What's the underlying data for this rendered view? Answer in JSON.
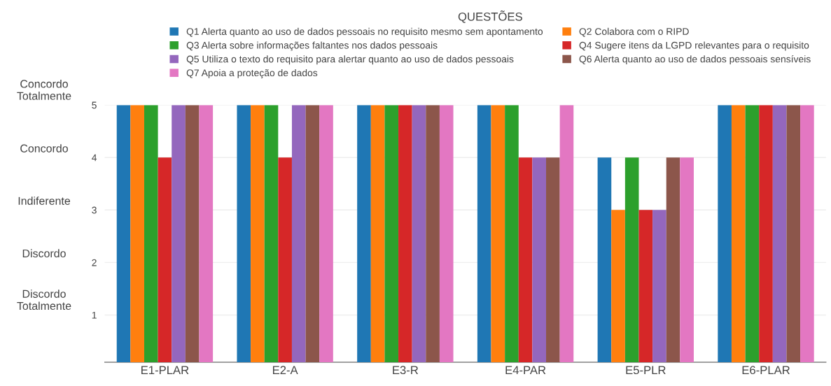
{
  "chart_data": {
    "type": "bar",
    "categories": [
      "E1-PLAR",
      "E2-A",
      "E3-R",
      "E4-PAR",
      "E5-PLR",
      "E6-PLAR"
    ],
    "series": [
      {
        "name": "Q1 Alerta quanto ao uso de dados pessoais no requisito mesmo sem apontamento",
        "color": "#1f77b4",
        "values": [
          5,
          5,
          5,
          5,
          4,
          5
        ]
      },
      {
        "name": "Q2 Colabora com o RIPD",
        "color": "#ff7f0e",
        "values": [
          5,
          5,
          5,
          5,
          3,
          5
        ]
      },
      {
        "name": "Q3 Alerta sobre informações faltantes nos dados pessoais",
        "color": "#2ca02c",
        "values": [
          5,
          5,
          5,
          5,
          4,
          5
        ]
      },
      {
        "name": "Q4 Sugere itens da LGPD relevantes para o requisito",
        "color": "#d62728",
        "values": [
          4,
          4,
          5,
          4,
          3,
          5
        ]
      },
      {
        "name": "Q5 Utiliza o texto do requisito para alertar quanto ao uso de dados pessoais",
        "color": "#9467bd",
        "values": [
          5,
          5,
          5,
          4,
          3,
          5
        ]
      },
      {
        "name": "Q6 Alerta quanto ao uso de dados pessoais sensíveis",
        "color": "#8c564b",
        "values": [
          5,
          5,
          5,
          4,
          4,
          5
        ]
      },
      {
        "name": "Q7 Apoia a proteção de dados",
        "color": "#e377c2",
        "values": [
          5,
          5,
          5,
          5,
          4,
          5
        ]
      }
    ],
    "legend_title": "QUESTÕES",
    "legend": "top",
    "ylim": [
      0.1,
      5
    ],
    "yticks": [
      1,
      2,
      3,
      4,
      5
    ],
    "grid": "y",
    "annotations": [
      "Discordo\nTotalmente",
      "Discordo",
      "Indiferente",
      "Concordo",
      "Concordo\nTotalmente"
    ]
  }
}
